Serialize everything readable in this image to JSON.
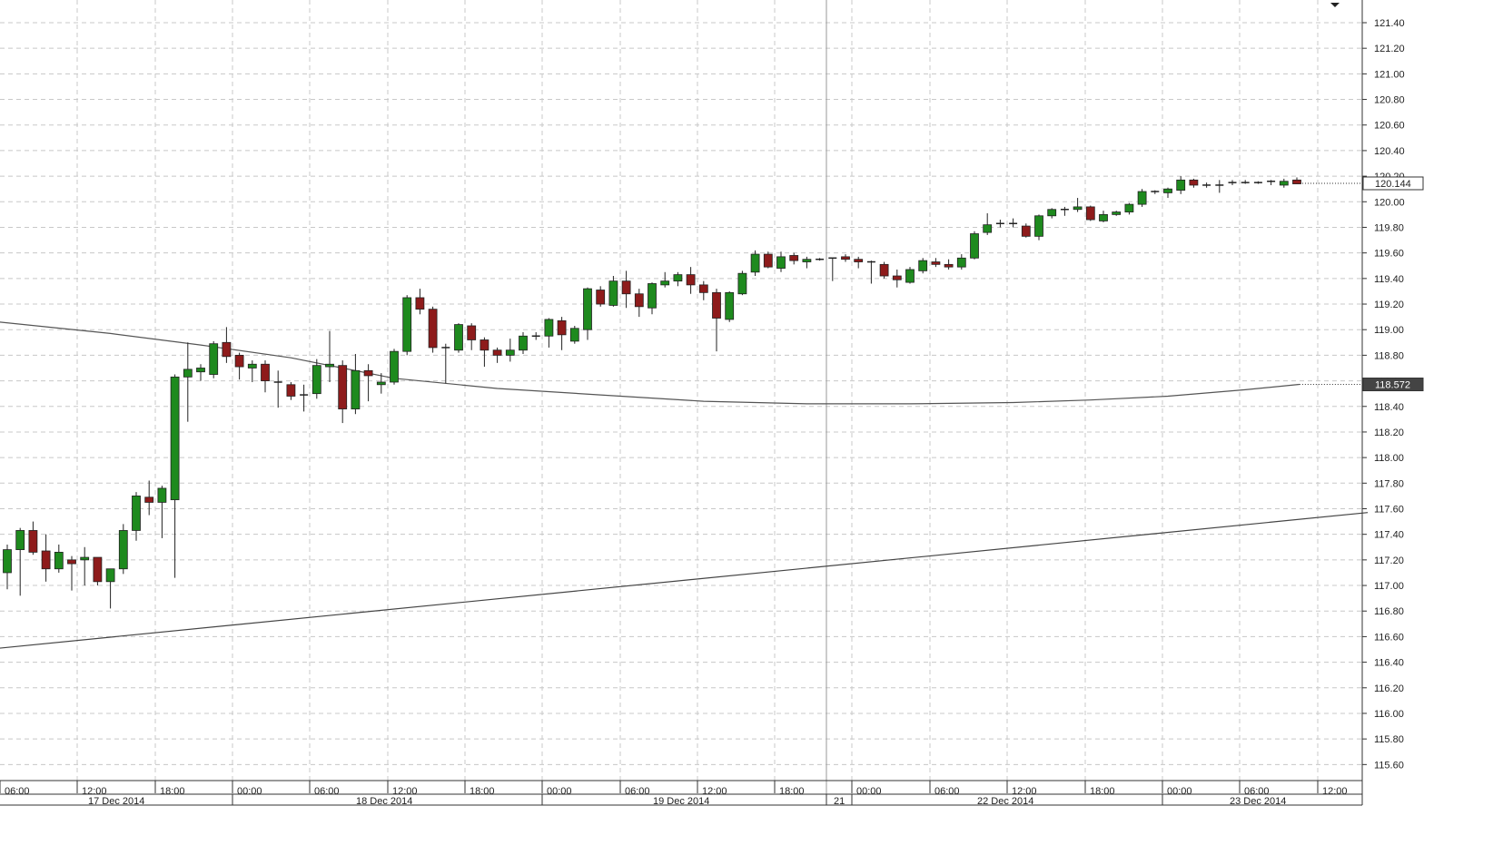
{
  "chart_data": {
    "type": "candlestick",
    "ylim": [
      115.48,
      121.52
    ],
    "y_ticks": [
      "121.40",
      "121.20",
      "121.00",
      "120.80",
      "120.60",
      "120.40",
      "120.20",
      "120.00",
      "119.80",
      "119.60",
      "119.40",
      "119.20",
      "119.00",
      "118.80",
      "118.60",
      "118.40",
      "118.20",
      "118.00",
      "117.80",
      "117.60",
      "117.40",
      "117.20",
      "117.00",
      "116.80",
      "116.60",
      "116.40",
      "116.20",
      "116.00",
      "115.80",
      "115.60"
    ],
    "x_ticks": [
      "06:00",
      "12:00",
      "18:00",
      "00:00",
      "06:00",
      "12:00",
      "18:00",
      "00:00",
      "06:00",
      "12:00",
      "18:00",
      "00:00",
      "06:00",
      "12:00",
      "18:00",
      "00:00",
      "06:00",
      "12:00"
    ],
    "date_labels": [
      "17 Dec 2014",
      "18 Dec 2014",
      "19 Dec 2014",
      "21",
      "22 Dec 2014",
      "23 Dec 2014"
    ],
    "current_price": "120.144",
    "ma_value": "118.572",
    "grid": true,
    "colors": {
      "bull": "#1e8a1e",
      "bear": "#8e1b1b",
      "wick": "#222222",
      "grid": "#c8c8c8",
      "line": "#555555"
    },
    "candles": [
      {
        "o": 117.1,
        "h": 117.32,
        "l": 116.97,
        "c": 117.28
      },
      {
        "o": 117.28,
        "h": 117.45,
        "l": 116.92,
        "c": 117.43
      },
      {
        "o": 117.43,
        "h": 117.5,
        "l": 117.24,
        "c": 117.26
      },
      {
        "o": 117.27,
        "h": 117.4,
        "l": 117.03,
        "c": 117.13
      },
      {
        "o": 117.13,
        "h": 117.32,
        "l": 117.1,
        "c": 117.26
      },
      {
        "o": 117.2,
        "h": 117.23,
        "l": 116.96,
        "c": 117.17
      },
      {
        "o": 117.2,
        "h": 117.3,
        "l": 117.0,
        "c": 117.22
      },
      {
        "o": 117.22,
        "h": 117.22,
        "l": 117.0,
        "c": 117.03
      },
      {
        "o": 117.03,
        "h": 117.12,
        "l": 116.82,
        "c": 117.13
      },
      {
        "o": 117.13,
        "h": 117.48,
        "l": 117.09,
        "c": 117.43
      },
      {
        "o": 117.43,
        "h": 117.73,
        "l": 117.35,
        "c": 117.7
      },
      {
        "o": 117.69,
        "h": 117.82,
        "l": 117.55,
        "c": 117.65
      },
      {
        "o": 117.65,
        "h": 117.78,
        "l": 117.37,
        "c": 117.76
      },
      {
        "o": 117.67,
        "h": 118.65,
        "l": 117.06,
        "c": 118.63
      },
      {
        "o": 118.63,
        "h": 118.9,
        "l": 118.28,
        "c": 118.69
      },
      {
        "o": 118.67,
        "h": 118.73,
        "l": 118.6,
        "c": 118.7
      },
      {
        "o": 118.65,
        "h": 118.91,
        "l": 118.62,
        "c": 118.89
      },
      {
        "o": 118.9,
        "h": 119.02,
        "l": 118.74,
        "c": 118.79
      },
      {
        "o": 118.8,
        "h": 118.82,
        "l": 118.61,
        "c": 118.71
      },
      {
        "o": 118.7,
        "h": 118.76,
        "l": 118.59,
        "c": 118.73
      },
      {
        "o": 118.73,
        "h": 118.76,
        "l": 118.51,
        "c": 118.6
      },
      {
        "o": 118.59,
        "h": 118.68,
        "l": 118.39,
        "c": 118.58
      },
      {
        "o": 118.57,
        "h": 118.59,
        "l": 118.45,
        "c": 118.48
      },
      {
        "o": 118.48,
        "h": 118.57,
        "l": 118.36,
        "c": 118.49
      },
      {
        "o": 118.5,
        "h": 118.77,
        "l": 118.46,
        "c": 118.72
      },
      {
        "o": 118.71,
        "h": 118.99,
        "l": 118.59,
        "c": 118.73
      },
      {
        "o": 118.72,
        "h": 118.76,
        "l": 118.27,
        "c": 118.38
      },
      {
        "o": 118.38,
        "h": 118.81,
        "l": 118.34,
        "c": 118.68
      },
      {
        "o": 118.68,
        "h": 118.73,
        "l": 118.44,
        "c": 118.64
      },
      {
        "o": 118.57,
        "h": 118.66,
        "l": 118.5,
        "c": 118.59
      },
      {
        "o": 118.59,
        "h": 118.85,
        "l": 118.57,
        "c": 118.83
      },
      {
        "o": 118.83,
        "h": 119.27,
        "l": 118.8,
        "c": 119.25
      },
      {
        "o": 119.25,
        "h": 119.32,
        "l": 119.12,
        "c": 119.16
      },
      {
        "o": 119.16,
        "h": 119.18,
        "l": 118.82,
        "c": 118.86
      },
      {
        "o": 118.85,
        "h": 118.89,
        "l": 118.58,
        "c": 118.86
      },
      {
        "o": 118.84,
        "h": 119.05,
        "l": 118.82,
        "c": 119.04
      },
      {
        "o": 119.03,
        "h": 119.05,
        "l": 118.84,
        "c": 118.92
      },
      {
        "o": 118.92,
        "h": 118.94,
        "l": 118.71,
        "c": 118.84
      },
      {
        "o": 118.84,
        "h": 118.86,
        "l": 118.74,
        "c": 118.8
      },
      {
        "o": 118.8,
        "h": 118.93,
        "l": 118.75,
        "c": 118.84
      },
      {
        "o": 118.84,
        "h": 118.98,
        "l": 118.81,
        "c": 118.95
      },
      {
        "o": 118.95,
        "h": 118.98,
        "l": 118.92,
        "c": 118.95
      },
      {
        "o": 118.95,
        "h": 119.09,
        "l": 118.86,
        "c": 119.08
      },
      {
        "o": 119.07,
        "h": 119.1,
        "l": 118.84,
        "c": 118.96
      },
      {
        "o": 118.91,
        "h": 119.03,
        "l": 118.89,
        "c": 119.01
      },
      {
        "o": 119.0,
        "h": 119.33,
        "l": 118.92,
        "c": 119.32
      },
      {
        "o": 119.31,
        "h": 119.34,
        "l": 119.18,
        "c": 119.2
      },
      {
        "o": 119.19,
        "h": 119.42,
        "l": 119.18,
        "c": 119.38
      },
      {
        "o": 119.38,
        "h": 119.46,
        "l": 119.17,
        "c": 119.28
      },
      {
        "o": 119.28,
        "h": 119.32,
        "l": 119.1,
        "c": 119.18
      },
      {
        "o": 119.17,
        "h": 119.37,
        "l": 119.12,
        "c": 119.36
      },
      {
        "o": 119.35,
        "h": 119.45,
        "l": 119.33,
        "c": 119.38
      },
      {
        "o": 119.38,
        "h": 119.45,
        "l": 119.34,
        "c": 119.43
      },
      {
        "o": 119.43,
        "h": 119.49,
        "l": 119.28,
        "c": 119.35
      },
      {
        "o": 119.35,
        "h": 119.38,
        "l": 119.23,
        "c": 119.29
      },
      {
        "o": 119.29,
        "h": 119.32,
        "l": 118.83,
        "c": 119.09
      },
      {
        "o": 119.08,
        "h": 119.3,
        "l": 119.06,
        "c": 119.29
      },
      {
        "o": 119.28,
        "h": 119.46,
        "l": 119.27,
        "c": 119.44
      },
      {
        "o": 119.45,
        "h": 119.62,
        "l": 119.42,
        "c": 119.59
      },
      {
        "o": 119.59,
        "h": 119.61,
        "l": 119.48,
        "c": 119.49
      },
      {
        "o": 119.48,
        "h": 119.61,
        "l": 119.45,
        "c": 119.57
      },
      {
        "o": 119.58,
        "h": 119.6,
        "l": 119.51,
        "c": 119.54
      },
      {
        "o": 119.53,
        "h": 119.57,
        "l": 119.48,
        "c": 119.55
      },
      {
        "o": 119.55,
        "h": 119.56,
        "l": 119.54,
        "c": 119.55
      },
      {
        "o": 119.55,
        "h": 119.56,
        "l": 119.38,
        "c": 119.56
      },
      {
        "o": 119.57,
        "h": 119.59,
        "l": 119.53,
        "c": 119.55
      },
      {
        "o": 119.55,
        "h": 119.57,
        "l": 119.48,
        "c": 119.53
      },
      {
        "o": 119.53,
        "h": 119.54,
        "l": 119.36,
        "c": 119.52
      },
      {
        "o": 119.51,
        "h": 119.53,
        "l": 119.4,
        "c": 119.42
      },
      {
        "o": 119.42,
        "h": 119.47,
        "l": 119.33,
        "c": 119.39
      },
      {
        "o": 119.37,
        "h": 119.49,
        "l": 119.36,
        "c": 119.47
      },
      {
        "o": 119.46,
        "h": 119.56,
        "l": 119.44,
        "c": 119.54
      },
      {
        "o": 119.53,
        "h": 119.56,
        "l": 119.49,
        "c": 119.51
      },
      {
        "o": 119.51,
        "h": 119.55,
        "l": 119.47,
        "c": 119.49
      },
      {
        "o": 119.49,
        "h": 119.59,
        "l": 119.47,
        "c": 119.56
      },
      {
        "o": 119.56,
        "h": 119.77,
        "l": 119.55,
        "c": 119.75
      },
      {
        "o": 119.76,
        "h": 119.91,
        "l": 119.74,
        "c": 119.82
      },
      {
        "o": 119.82,
        "h": 119.86,
        "l": 119.8,
        "c": 119.83
      },
      {
        "o": 119.83,
        "h": 119.87,
        "l": 119.8,
        "c": 119.82
      },
      {
        "o": 119.81,
        "h": 119.83,
        "l": 119.72,
        "c": 119.73
      },
      {
        "o": 119.73,
        "h": 119.9,
        "l": 119.7,
        "c": 119.89
      },
      {
        "o": 119.89,
        "h": 119.95,
        "l": 119.87,
        "c": 119.94
      },
      {
        "o": 119.94,
        "h": 119.96,
        "l": 119.89,
        "c": 119.94
      },
      {
        "o": 119.94,
        "h": 120.03,
        "l": 119.92,
        "c": 119.96
      },
      {
        "o": 119.96,
        "h": 119.97,
        "l": 119.85,
        "c": 119.86
      },
      {
        "o": 119.85,
        "h": 119.93,
        "l": 119.84,
        "c": 119.9
      },
      {
        "o": 119.9,
        "h": 119.93,
        "l": 119.89,
        "c": 119.92
      },
      {
        "o": 119.92,
        "h": 119.99,
        "l": 119.9,
        "c": 119.98
      },
      {
        "o": 119.98,
        "h": 120.1,
        "l": 119.96,
        "c": 120.08
      },
      {
        "o": 120.08,
        "h": 120.09,
        "l": 120.06,
        "c": 120.07
      },
      {
        "o": 120.07,
        "h": 120.11,
        "l": 120.03,
        "c": 120.1
      },
      {
        "o": 120.09,
        "h": 120.2,
        "l": 120.06,
        "c": 120.17
      },
      {
        "o": 120.17,
        "h": 120.18,
        "l": 120.11,
        "c": 120.13
      },
      {
        "o": 120.13,
        "h": 120.15,
        "l": 120.11,
        "c": 120.13
      },
      {
        "o": 120.13,
        "h": 120.17,
        "l": 120.07,
        "c": 120.13
      },
      {
        "o": 120.14,
        "h": 120.17,
        "l": 120.13,
        "c": 120.15
      },
      {
        "o": 120.15,
        "h": 120.17,
        "l": 120.14,
        "c": 120.15
      },
      {
        "o": 120.15,
        "h": 120.16,
        "l": 120.14,
        "c": 120.15
      },
      {
        "o": 120.15,
        "h": 120.17,
        "l": 120.13,
        "c": 120.16
      },
      {
        "o": 120.13,
        "h": 120.18,
        "l": 120.11,
        "c": 120.16
      },
      {
        "o": 120.17,
        "h": 120.19,
        "l": 120.14,
        "c": 120.14
      }
    ],
    "ma_line": [
      {
        "i": -0.6,
        "v": 119.06
      },
      {
        "i": 8,
        "v": 118.97
      },
      {
        "i": 15,
        "v": 118.88
      },
      {
        "i": 22,
        "v": 118.78
      },
      {
        "i": 30,
        "v": 118.62
      },
      {
        "i": 38,
        "v": 118.54
      },
      {
        "i": 46,
        "v": 118.49
      },
      {
        "i": 54,
        "v": 118.44
      },
      {
        "i": 62,
        "v": 118.42
      },
      {
        "i": 70,
        "v": 118.42
      },
      {
        "i": 78,
        "v": 118.43
      },
      {
        "i": 84,
        "v": 118.45
      },
      {
        "i": 90,
        "v": 118.48
      },
      {
        "i": 96,
        "v": 118.53
      },
      {
        "i": 100.2,
        "v": 118.572
      }
    ],
    "trend_line": [
      {
        "i": -0.6,
        "v": 116.51
      },
      {
        "i": 105.5,
        "v": 117.57
      }
    ]
  }
}
